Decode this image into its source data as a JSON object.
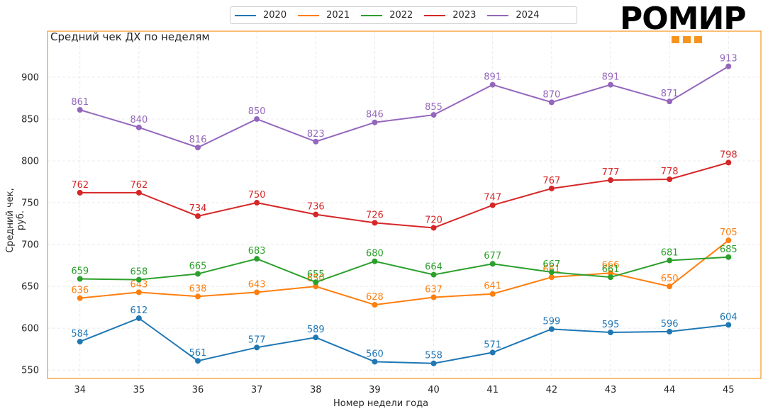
{
  "chart_data": {
    "type": "line",
    "title": "Средний чек ДХ по неделям",
    "xlabel": "Номер недели года",
    "ylabel": "Средний чек, руб.",
    "x": [
      34,
      35,
      36,
      37,
      38,
      39,
      40,
      41,
      42,
      43,
      44,
      45
    ],
    "x_tick_labels": [
      "34",
      "35",
      "36",
      "37",
      "38",
      "39",
      "40",
      "41",
      "42",
      "43",
      "44",
      "45"
    ],
    "y_ticks": [
      550,
      600,
      650,
      700,
      750,
      800,
      850,
      900
    ],
    "y_tick_labels": [
      "550",
      "600",
      "650",
      "700",
      "750",
      "800",
      "850",
      "900"
    ],
    "ylim": [
      540,
      955
    ],
    "xlim": [
      33.45,
      45.55
    ],
    "grid": true,
    "legend_position": "top-center",
    "series": [
      {
        "name": "2020",
        "color": "#1f77b4",
        "values": [
          584,
          612,
          561,
          577,
          589,
          560,
          558,
          571,
          599,
          595,
          596,
          604
        ]
      },
      {
        "name": "2021",
        "color": "#ff7f0e",
        "values": [
          636,
          643,
          638,
          643,
          650,
          628,
          637,
          641,
          661,
          666,
          650,
          705
        ]
      },
      {
        "name": "2022",
        "color": "#2ca02c",
        "values": [
          659,
          658,
          665,
          683,
          655,
          680,
          664,
          677,
          667,
          661,
          681,
          685
        ]
      },
      {
        "name": "2023",
        "color": "#d62728",
        "values": [
          762,
          762,
          734,
          750,
          736,
          726,
          720,
          747,
          767,
          777,
          778,
          798
        ]
      },
      {
        "name": "2024",
        "color": "#9467bd",
        "values": [
          861,
          840,
          816,
          850,
          823,
          846,
          855,
          891,
          870,
          891,
          871,
          913
        ]
      }
    ],
    "frame_color": "#f7941d"
  },
  "logo": {
    "text": "РОМИР",
    "accent_color": "#f7941d"
  }
}
